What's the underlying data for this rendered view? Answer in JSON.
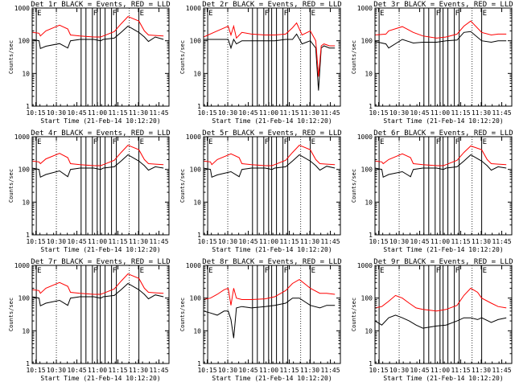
{
  "figure": {
    "xlabel": "Start Time (21-Feb-14 10:12:20)",
    "ylabel": "Counts/sec",
    "x_tick_labels": [
      "10:15",
      "10:30",
      "10:45",
      "11:00",
      "11:15",
      "11:30",
      "11:45"
    ],
    "y_tick_labels": [
      "1",
      "10",
      "100",
      "1000"
    ],
    "colors": {
      "events": "#000000",
      "lld": "#ff0000"
    }
  },
  "chart_data": [
    {
      "type": "line",
      "title": "Det 1r BLACK = Events, RED = LLD",
      "xlabel": "Start Time (21-Feb-14 10:12:20)",
      "ylabel": "Counts/sec",
      "x_unit": "minutes after 10:12:20",
      "xlim": [
        0,
        100
      ],
      "ylim": [
        1,
        1000
      ],
      "y_scale": "log",
      "markers": [
        {
          "label": "E",
          "x": 3
        },
        {
          "label": "F",
          "x": 44
        },
        {
          "label": "F",
          "x": 58
        },
        {
          "label": "E",
          "x": 78
        }
      ],
      "series": [
        {
          "name": "Events",
          "color": "#000000",
          "x": [
            0,
            5,
            6,
            10,
            20,
            26,
            28,
            35,
            45,
            50,
            52,
            60,
            65,
            70,
            78,
            82,
            85,
            90,
            96
          ],
          "y": [
            110,
            100,
            58,
            68,
            82,
            60,
            100,
            110,
            110,
            100,
            110,
            120,
            180,
            280,
            180,
            130,
            95,
            130,
            110
          ]
        },
        {
          "name": "LLD",
          "color": "#ff0000",
          "x": [
            0,
            5,
            6,
            10,
            20,
            26,
            28,
            35,
            45,
            50,
            52,
            60,
            65,
            70,
            78,
            82,
            85,
            90,
            96
          ],
          "y": [
            180,
            170,
            140,
            200,
            300,
            230,
            150,
            140,
            130,
            130,
            140,
            190,
            330,
            550,
            400,
            200,
            150,
            145,
            140
          ]
        }
      ]
    },
    {
      "type": "line",
      "title": "Det 2r BLACK = Events, RED = LLD",
      "xlabel": "Start Time (21-Feb-14 10:12:20)",
      "ylabel": "Counts/sec",
      "x_unit": "minutes after 10:12:20",
      "xlim": [
        0,
        100
      ],
      "ylim": [
        1,
        1000
      ],
      "y_scale": "log",
      "markers": [
        {
          "label": "E",
          "x": 3
        },
        {
          "label": "F",
          "x": 44
        },
        {
          "label": "F",
          "x": 58
        },
        {
          "label": "E",
          "x": 78
        }
      ],
      "series": [
        {
          "name": "Events",
          "color": "#000000",
          "x": [
            0,
            10,
            18,
            20,
            22,
            24,
            28,
            35,
            45,
            52,
            60,
            65,
            68,
            72,
            78,
            82,
            84,
            86,
            88,
            92,
            96
          ],
          "y": [
            110,
            110,
            110,
            60,
            110,
            80,
            100,
            100,
            100,
            100,
            110,
            110,
            160,
            80,
            100,
            60,
            3,
            60,
            70,
            60,
            60
          ]
        },
        {
          "name": "LLD",
          "color": "#ff0000",
          "x": [
            0,
            10,
            18,
            20,
            22,
            24,
            28,
            35,
            45,
            52,
            60,
            65,
            68,
            72,
            78,
            82,
            84,
            86,
            88,
            92,
            96
          ],
          "y": [
            130,
            200,
            280,
            150,
            280,
            120,
            180,
            160,
            150,
            150,
            160,
            250,
            350,
            150,
            200,
            100,
            8,
            70,
            80,
            70,
            70
          ]
        }
      ]
    },
    {
      "type": "line",
      "title": "Det 3r BLACK = Events, RED = LLD",
      "xlabel": "Start Time (21-Feb-14 10:12:20)",
      "ylabel": "Counts/sec",
      "x_unit": "minutes after 10:12:20",
      "xlim": [
        0,
        100
      ],
      "ylim": [
        1,
        1000
      ],
      "y_scale": "log",
      "markers": [
        {
          "label": "E",
          "x": 3
        },
        {
          "label": "F",
          "x": 44
        },
        {
          "label": "F",
          "x": 58
        },
        {
          "label": "E",
          "x": 78
        }
      ],
      "series": [
        {
          "name": "Events",
          "color": "#000000",
          "x": [
            0,
            8,
            10,
            20,
            28,
            35,
            45,
            52,
            60,
            65,
            70,
            78,
            85,
            90,
            96
          ],
          "y": [
            95,
            80,
            60,
            110,
            85,
            90,
            90,
            100,
            105,
            180,
            190,
            100,
            90,
            100,
            100
          ]
        },
        {
          "name": "LLD",
          "color": "#ff0000",
          "x": [
            0,
            8,
            10,
            20,
            28,
            35,
            45,
            52,
            60,
            65,
            70,
            78,
            85,
            90,
            96
          ],
          "y": [
            150,
            160,
            200,
            270,
            180,
            140,
            120,
            130,
            160,
            280,
            400,
            180,
            150,
            160,
            160
          ]
        }
      ]
    },
    {
      "type": "line",
      "title": "Det 4r BLACK = Events, RED = LLD",
      "xlabel": "Start Time (21-Feb-14 10:12:20)",
      "ylabel": "Counts/sec",
      "x_unit": "minutes after 10:12:20",
      "xlim": [
        0,
        100
      ],
      "ylim": [
        1,
        1000
      ],
      "y_scale": "log",
      "markers": [
        {
          "label": "E",
          "x": 3
        },
        {
          "label": "F",
          "x": 44
        },
        {
          "label": "F",
          "x": 58
        },
        {
          "label": "E",
          "x": 78
        }
      ],
      "series": [
        {
          "name": "Events",
          "color": "#000000",
          "x": [
            0,
            5,
            6,
            10,
            20,
            26,
            28,
            35,
            45,
            50,
            52,
            60,
            65,
            70,
            78,
            82,
            85,
            90,
            96
          ],
          "y": [
            110,
            100,
            58,
            70,
            90,
            60,
            100,
            110,
            110,
            100,
            110,
            120,
            180,
            280,
            180,
            130,
            95,
            120,
            110
          ]
        },
        {
          "name": "LLD",
          "color": "#ff0000",
          "x": [
            0,
            5,
            6,
            10,
            20,
            26,
            28,
            35,
            45,
            50,
            52,
            60,
            65,
            70,
            78,
            82,
            85,
            90,
            96
          ],
          "y": [
            180,
            170,
            150,
            210,
            310,
            230,
            150,
            140,
            130,
            130,
            140,
            190,
            330,
            550,
            400,
            200,
            150,
            145,
            140
          ]
        }
      ]
    },
    {
      "type": "line",
      "title": "Det 5r BLACK = Events, RED = LLD",
      "xlabel": "Start Time (21-Feb-14 10:12:20)",
      "ylabel": "Counts/sec",
      "x_unit": "minutes after 10:12:20",
      "xlim": [
        0,
        100
      ],
      "ylim": [
        1,
        1000
      ],
      "y_scale": "log",
      "markers": [
        {
          "label": "E",
          "x": 3
        },
        {
          "label": "F",
          "x": 44
        },
        {
          "label": "F",
          "x": 58
        },
        {
          "label": "E",
          "x": 78
        }
      ],
      "series": [
        {
          "name": "Events",
          "color": "#000000",
          "x": [
            0,
            5,
            6,
            10,
            20,
            26,
            28,
            35,
            45,
            50,
            52,
            60,
            65,
            70,
            78,
            82,
            85,
            90,
            96
          ],
          "y": [
            110,
            100,
            58,
            68,
            85,
            60,
            100,
            110,
            110,
            100,
            110,
            120,
            180,
            280,
            180,
            130,
            95,
            125,
            110
          ]
        },
        {
          "name": "LLD",
          "color": "#ff0000",
          "x": [
            0,
            5,
            6,
            10,
            20,
            26,
            28,
            35,
            45,
            50,
            52,
            60,
            65,
            70,
            78,
            82,
            85,
            90,
            96
          ],
          "y": [
            180,
            170,
            140,
            200,
            300,
            230,
            150,
            140,
            130,
            130,
            140,
            190,
            330,
            550,
            400,
            200,
            150,
            145,
            140
          ]
        }
      ]
    },
    {
      "type": "line",
      "title": "Det 6r BLACK = Events, RED = LLD",
      "xlabel": "Start Time (21-Feb-14 10:12:20)",
      "ylabel": "Counts/sec",
      "x_unit": "minutes after 10:12:20",
      "xlim": [
        0,
        100
      ],
      "ylim": [
        1,
        1000
      ],
      "y_scale": "log",
      "markers": [
        {
          "label": "E",
          "x": 3
        },
        {
          "label": "F",
          "x": 44
        },
        {
          "label": "F",
          "x": 58
        },
        {
          "label": "E",
          "x": 78
        }
      ],
      "series": [
        {
          "name": "Events",
          "color": "#000000",
          "x": [
            0,
            5,
            6,
            10,
            20,
            26,
            28,
            35,
            45,
            50,
            52,
            60,
            65,
            70,
            78,
            82,
            85,
            90,
            96
          ],
          "y": [
            110,
            100,
            58,
            70,
            85,
            60,
            100,
            110,
            110,
            100,
            110,
            120,
            180,
            280,
            180,
            130,
            95,
            120,
            110
          ]
        },
        {
          "name": "LLD",
          "color": "#ff0000",
          "x": [
            0,
            5,
            6,
            10,
            20,
            26,
            28,
            35,
            45,
            50,
            52,
            60,
            65,
            70,
            78,
            82,
            85,
            90,
            96
          ],
          "y": [
            180,
            170,
            150,
            200,
            300,
            230,
            150,
            140,
            130,
            130,
            140,
            190,
            330,
            520,
            400,
            200,
            150,
            145,
            140
          ]
        }
      ]
    },
    {
      "type": "line",
      "title": "Det 7r BLACK = Events, RED = LLD",
      "xlabel": "Start Time (21-Feb-14 10:12:20)",
      "ylabel": "Counts/sec",
      "x_unit": "minutes after 10:12:20",
      "xlim": [
        0,
        100
      ],
      "ylim": [
        1,
        1000
      ],
      "y_scale": "log",
      "markers": [
        {
          "label": "E",
          "x": 3
        },
        {
          "label": "F",
          "x": 44
        },
        {
          "label": "F",
          "x": 58
        },
        {
          "label": "E",
          "x": 78
        }
      ],
      "series": [
        {
          "name": "Events",
          "color": "#000000",
          "x": [
            0,
            5,
            6,
            10,
            20,
            26,
            28,
            35,
            45,
            50,
            52,
            60,
            65,
            70,
            78,
            82,
            85,
            90,
            96
          ],
          "y": [
            110,
            100,
            58,
            70,
            85,
            60,
            100,
            110,
            110,
            100,
            110,
            120,
            180,
            280,
            180,
            130,
            95,
            125,
            110
          ]
        },
        {
          "name": "LLD",
          "color": "#ff0000",
          "x": [
            0,
            5,
            6,
            10,
            20,
            26,
            28,
            35,
            45,
            50,
            52,
            60,
            65,
            70,
            78,
            82,
            85,
            90,
            96
          ],
          "y": [
            180,
            170,
            140,
            200,
            300,
            230,
            150,
            140,
            130,
            130,
            140,
            190,
            330,
            550,
            400,
            200,
            150,
            145,
            140
          ]
        }
      ]
    },
    {
      "type": "line",
      "title": "Det 8r BLACK = Events, RED = LLD",
      "xlabel": "Start Time (21-Feb-14 10:12:20)",
      "ylabel": "Counts/sec",
      "x_unit": "minutes after 10:12:20",
      "xlim": [
        0,
        100
      ],
      "ylim": [
        1,
        1000
      ],
      "y_scale": "log",
      "markers": [
        {
          "label": "E",
          "x": 3
        },
        {
          "label": "F",
          "x": 44
        },
        {
          "label": "F",
          "x": 58
        },
        {
          "label": "E",
          "x": 78
        }
      ],
      "series": [
        {
          "name": "Events",
          "color": "#000000",
          "x": [
            0,
            5,
            10,
            15,
            18,
            20,
            22,
            24,
            28,
            35,
            45,
            52,
            60,
            65,
            70,
            78,
            85,
            90,
            96
          ],
          "y": [
            40,
            35,
            30,
            40,
            40,
            22,
            6,
            50,
            55,
            50,
            55,
            60,
            70,
            100,
            100,
            60,
            50,
            60,
            60
          ]
        },
        {
          "name": "LLD",
          "color": "#ff0000",
          "x": [
            0,
            5,
            10,
            15,
            18,
            20,
            22,
            24,
            28,
            35,
            45,
            52,
            60,
            65,
            70,
            78,
            85,
            90,
            96
          ],
          "y": [
            90,
            100,
            130,
            180,
            200,
            60,
            200,
            100,
            90,
            90,
            95,
            110,
            170,
            280,
            370,
            200,
            140,
            140,
            130
          ]
        }
      ]
    },
    {
      "type": "line",
      "title": "Det 9r BLACK = Events, RED = LLD",
      "xlabel": "Start Time (21-Feb-14 10:12:20)",
      "ylabel": "Counts/sec",
      "x_unit": "minutes after 10:12:20",
      "xlim": [
        0,
        100
      ],
      "ylim": [
        1,
        1000
      ],
      "y_scale": "log",
      "markers": [
        {
          "label": "E",
          "x": 3
        },
        {
          "label": "F",
          "x": 44
        },
        {
          "label": "F",
          "x": 58
        },
        {
          "label": "E",
          "x": 78
        }
      ],
      "series": [
        {
          "name": "Events",
          "color": "#000000",
          "x": [
            0,
            5,
            10,
            15,
            20,
            25,
            30,
            35,
            45,
            52,
            60,
            65,
            70,
            75,
            78,
            85,
            90,
            96
          ],
          "y": [
            20,
            15,
            25,
            30,
            25,
            20,
            15,
            12,
            14,
            15,
            20,
            25,
            25,
            22,
            25,
            18,
            22,
            25
          ]
        },
        {
          "name": "LLD",
          "color": "#ff0000",
          "x": [
            0,
            5,
            10,
            15,
            20,
            25,
            30,
            35,
            45,
            52,
            60,
            65,
            70,
            75,
            78,
            85,
            90,
            96
          ],
          "y": [
            50,
            55,
            80,
            120,
            100,
            70,
            50,
            45,
            40,
            45,
            60,
            120,
            200,
            150,
            100,
            70,
            55,
            50
          ]
        }
      ]
    }
  ]
}
